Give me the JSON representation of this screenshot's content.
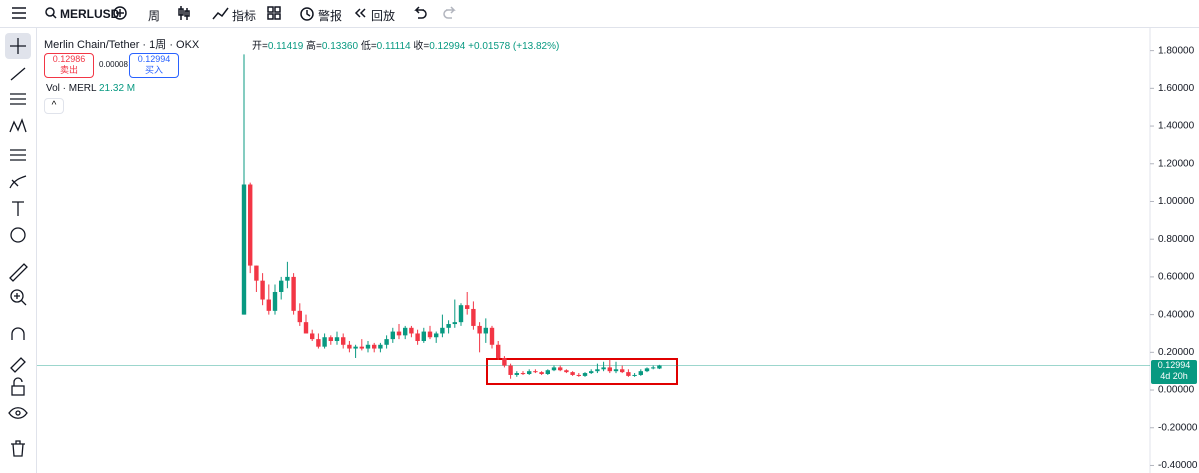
{
  "toolbar": {
    "symbol": "MERLUSD",
    "interval": "周",
    "indicators": "指标",
    "alerts": "警报",
    "replay": "回放"
  },
  "legend": {
    "title": "Merlin Chain/Tether · 1周 · OKX",
    "open_label": "开",
    "open": "0.11419",
    "high_label": "高",
    "high": "0.13360",
    "low_label": "低",
    "low": "0.11114",
    "close_label": "收",
    "close": "0.12994",
    "change": "+0.01578 (+13.82%)"
  },
  "trade": {
    "sell_price": "0.12986",
    "sell": "卖出",
    "spread": "0.00008",
    "buy_price": "0.12994",
    "buy": "买入"
  },
  "volume": {
    "label": "Vol · MERL",
    "value": "21.32 M"
  },
  "price_axis": {
    "last_price": "0.12994",
    "countdown": "4d 20h"
  },
  "chart_data": {
    "type": "candlestick",
    "up_color": "#089981",
    "down_color": "#f23645",
    "open": [
      0.4,
      1.09,
      0.66,
      0.58,
      0.48,
      0.42,
      0.52,
      0.58,
      0.6,
      0.42,
      0.36,
      0.3,
      0.27,
      0.23,
      0.28,
      0.26,
      0.28,
      0.24,
      0.22,
      0.23,
      0.22,
      0.24,
      0.22,
      0.24,
      0.27,
      0.31,
      0.29,
      0.33,
      0.3,
      0.26,
      0.31,
      0.28,
      0.3,
      0.33,
      0.35,
      0.36,
      0.45,
      0.43,
      0.34,
      0.3,
      0.33,
      0.24,
      0.17,
      0.13,
      0.08,
      0.09,
      0.085,
      0.1,
      0.095,
      0.085,
      0.105,
      0.12,
      0.105,
      0.095,
      0.08,
      0.075,
      0.09,
      0.1,
      0.11,
      0.12,
      0.1,
      0.11,
      0.095,
      0.075,
      0.08,
      0.1,
      0.115,
      0.11419
    ],
    "high": [
      1.78,
      1.1,
      0.66,
      0.62,
      0.56,
      0.56,
      0.6,
      0.68,
      0.62,
      0.46,
      0.4,
      0.32,
      0.3,
      0.3,
      0.29,
      0.31,
      0.3,
      0.26,
      0.24,
      0.27,
      0.26,
      0.25,
      0.25,
      0.29,
      0.33,
      0.35,
      0.34,
      0.34,
      0.32,
      0.33,
      0.34,
      0.31,
      0.4,
      0.37,
      0.48,
      0.46,
      0.52,
      0.47,
      0.36,
      0.38,
      0.34,
      0.26,
      0.18,
      0.14,
      0.1,
      0.1,
      0.11,
      0.11,
      0.1,
      0.11,
      0.13,
      0.13,
      0.11,
      0.1,
      0.09,
      0.095,
      0.11,
      0.14,
      0.15,
      0.16,
      0.15,
      0.13,
      0.11,
      0.09,
      0.11,
      0.12,
      0.13,
      0.1336
    ],
    "low": [
      0.4,
      0.62,
      0.52,
      0.45,
      0.4,
      0.4,
      0.48,
      0.54,
      0.4,
      0.34,
      0.3,
      0.26,
      0.22,
      0.22,
      0.24,
      0.24,
      0.22,
      0.2,
      0.17,
      0.21,
      0.2,
      0.2,
      0.2,
      0.22,
      0.25,
      0.27,
      0.27,
      0.28,
      0.24,
      0.25,
      0.27,
      0.25,
      0.28,
      0.3,
      0.33,
      0.34,
      0.4,
      0.32,
      0.2,
      0.25,
      0.22,
      0.16,
      0.12,
      0.06,
      0.07,
      0.08,
      0.08,
      0.09,
      0.08,
      0.08,
      0.1,
      0.1,
      0.09,
      0.075,
      0.07,
      0.07,
      0.085,
      0.09,
      0.1,
      0.09,
      0.09,
      0.09,
      0.07,
      0.07,
      0.075,
      0.095,
      0.11,
      0.11114
    ],
    "close": [
      1.09,
      0.66,
      0.58,
      0.48,
      0.42,
      0.52,
      0.58,
      0.6,
      0.42,
      0.36,
      0.3,
      0.27,
      0.23,
      0.28,
      0.26,
      0.28,
      0.24,
      0.22,
      0.23,
      0.22,
      0.24,
      0.22,
      0.24,
      0.27,
      0.31,
      0.29,
      0.33,
      0.3,
      0.26,
      0.31,
      0.28,
      0.3,
      0.33,
      0.35,
      0.36,
      0.45,
      0.43,
      0.34,
      0.3,
      0.33,
      0.24,
      0.17,
      0.13,
      0.08,
      0.09,
      0.085,
      0.1,
      0.095,
      0.085,
      0.105,
      0.12,
      0.105,
      0.095,
      0.08,
      0.075,
      0.09,
      0.1,
      0.11,
      0.12,
      0.1,
      0.11,
      0.095,
      0.075,
      0.08,
      0.1,
      0.115,
      0.12,
      0.12994
    ],
    "last_price": 0.12994,
    "ylim": [
      -0.44,
      1.92
    ],
    "yticks": [
      {
        "value": 1.8,
        "label": "1.80000"
      },
      {
        "value": 1.6,
        "label": "1.60000"
      },
      {
        "value": 1.4,
        "label": "1.40000"
      },
      {
        "value": 1.2,
        "label": "1.20000"
      },
      {
        "value": 1.0,
        "label": "1.00000"
      },
      {
        "value": 0.8,
        "label": "0.80000"
      },
      {
        "value": 0.6,
        "label": "0.60000"
      },
      {
        "value": 0.4,
        "label": "0.40000"
      },
      {
        "value": 0.2,
        "label": "0.20000"
      },
      {
        "value": 0,
        "label": "0.00000"
      },
      {
        "value": -0.2,
        "label": "-0.20000"
      },
      {
        "value": -0.4,
        "label": "-0.40000"
      }
    ]
  }
}
